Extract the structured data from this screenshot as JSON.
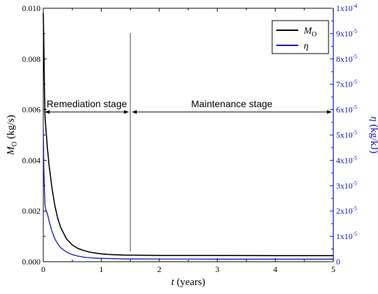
{
  "chart_data": {
    "type": "line",
    "x_axis": {
      "label_italic": "t",
      "label_rest": " (years)",
      "range": [
        0,
        5
      ],
      "ticks": [
        0,
        1,
        2,
        3,
        4,
        5
      ],
      "tick_labels": [
        "0",
        "1",
        "2",
        "3",
        "4",
        "5"
      ]
    },
    "y_left": {
      "label_italic": "M",
      "label_sub": "O",
      "label_rest": " (kg/s)",
      "range": [
        0,
        0.01
      ],
      "ticks": [
        0,
        0.002,
        0.004,
        0.006,
        0.008,
        0.01
      ],
      "tick_labels": [
        "0.000",
        "0.002",
        "0.004",
        "0.006",
        "0.008",
        "0.010"
      ],
      "color": "#000000"
    },
    "y_right": {
      "label_italic": "η",
      "label_rest": " (kg/kJ)",
      "range": [
        0,
        0.0001
      ],
      "ticks": [
        0,
        1e-05,
        2e-05,
        3e-05,
        4e-05,
        5e-05,
        6e-05,
        7e-05,
        8e-05,
        9e-05,
        0.0001
      ],
      "tick_labels": [
        {
          "base": "0",
          "exp": ""
        },
        {
          "base": "1x10",
          "exp": "-5"
        },
        {
          "base": "2x10",
          "exp": "-5"
        },
        {
          "base": "3x10",
          "exp": "-5"
        },
        {
          "base": "4x10",
          "exp": "-5"
        },
        {
          "base": "5x10",
          "exp": "-5"
        },
        {
          "base": "6x10",
          "exp": "-5"
        },
        {
          "base": "7x10",
          "exp": "-5"
        },
        {
          "base": "8x10",
          "exp": "-5"
        },
        {
          "base": "9x10",
          "exp": "-5"
        },
        {
          "base": "1x10",
          "exp": "-4"
        }
      ],
      "color": "#1010c0"
    },
    "series": [
      {
        "name_italic": "M",
        "name_sub": "O",
        "axis": "left",
        "color": "#000000",
        "x": [
          0,
          0.01,
          0.02,
          0.03,
          0.05,
          0.07,
          0.1,
          0.15,
          0.2,
          0.25,
          0.3,
          0.4,
          0.5,
          0.6,
          0.7,
          0.8,
          0.9,
          1.0,
          1.1,
          1.2,
          1.3,
          1.4,
          1.5,
          2.0,
          2.5,
          3.0,
          3.5,
          4.0,
          4.5,
          5.0
        ],
        "y": [
          0.0098,
          0.0085,
          0.0068,
          0.0057,
          0.0051,
          0.0045,
          0.0038,
          0.0029,
          0.0022,
          0.0017,
          0.00135,
          0.0009,
          0.00066,
          0.00052,
          0.00044,
          0.00038,
          0.00034,
          0.00031,
          0.00029,
          0.00028,
          0.00027,
          0.00026,
          0.00026,
          0.00025,
          0.00025,
          0.00025,
          0.000245,
          0.00024,
          0.00024,
          0.00024
        ]
      },
      {
        "name_italic": "η",
        "axis": "right",
        "color": "#1010c0",
        "x": [
          0,
          0.01,
          0.02,
          0.03,
          0.05,
          0.07,
          0.1,
          0.15,
          0.2,
          0.25,
          0.3,
          0.4,
          0.5,
          0.6,
          0.7,
          0.8,
          0.9,
          1.0,
          1.1,
          1.2,
          1.3,
          1.4,
          1.5,
          2.0,
          2.5,
          3.0,
          3.5,
          4.0,
          4.5,
          5.0
        ],
        "y": [
          5.2e-05,
          3.6e-05,
          2.8e-05,
          2.2e-05,
          2e-05,
          1.9e-05,
          1.6e-05,
          1.2e-05,
          9e-06,
          7e-06,
          5.5e-06,
          3.8e-06,
          2.8e-06,
          2.2e-06,
          1.8e-06,
          1.55e-06,
          1.4e-06,
          1.3e-06,
          1.25e-06,
          1.2e-06,
          1.15e-06,
          1.1e-06,
          1.1e-06,
          1.05e-06,
          1.05e-06,
          1e-06,
          1e-06,
          1e-06,
          1e-06,
          1e-06
        ]
      }
    ],
    "annotations": [
      {
        "text": "Remediation stage",
        "x_from": 0,
        "x_to": 1.5
      },
      {
        "text": "Maintenance stage",
        "x_from": 1.5,
        "x_to": 5
      }
    ],
    "divider_x": 1.5,
    "legend_position": "top-right",
    "grid": false
  }
}
